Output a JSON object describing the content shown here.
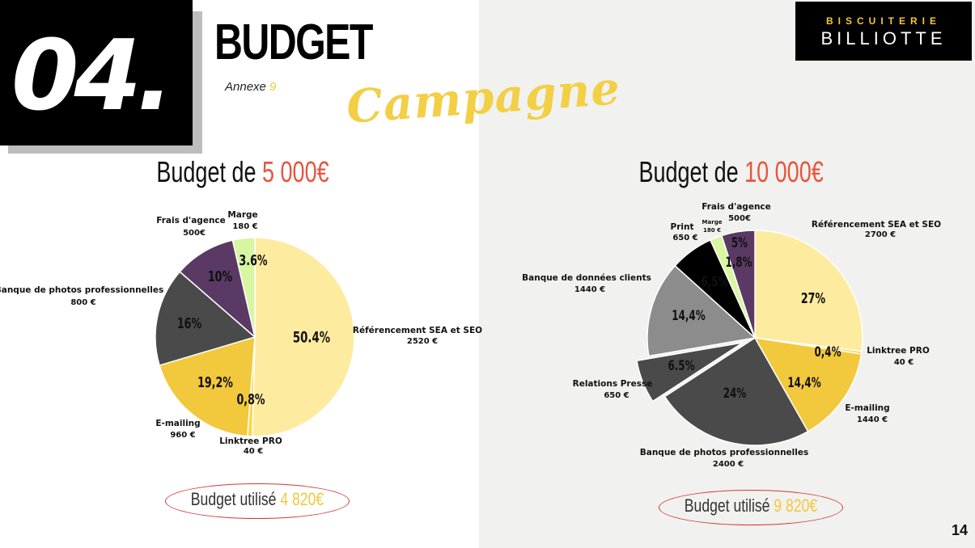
{
  "header": {
    "section_number": "04.",
    "title": "BUDGET",
    "annexe_label": "Annexe",
    "annexe_number": "9",
    "subtitle": "Campagne",
    "brand_line1": "BISCUITERIE",
    "brand_line2": "BILLIOTTE"
  },
  "left": {
    "heading_prefix": "Budget de",
    "heading_value": "5 000€",
    "used_prefix": "Budget utilisé",
    "used_value": "4 820€"
  },
  "right": {
    "heading_prefix": "Budget de",
    "heading_value": "10 000€",
    "used_prefix": "Budget utilisé",
    "used_value": "9 820€"
  },
  "page_number": "14",
  "colors": {
    "accent_yellow": "#f2c83c",
    "accent_red": "#e8543e",
    "light_yellow": "#fdeba0",
    "purple": "#5a3a64",
    "dark_gray": "#4a4a4a",
    "light_green": "#d8f5a2",
    "mid_gray": "#8c8c8c"
  },
  "chart_data": [
    {
      "type": "pie",
      "title": "Budget de 5 000€",
      "slices": [
        {
          "name": "Référencement SEA et SEO",
          "amount": "2520 €",
          "value": 2520,
          "pct_label": "50.4%",
          "color": "#fdeba0"
        },
        {
          "name": "Linktree PRO",
          "amount": "40 €",
          "value": 40,
          "pct_label": "0,8%",
          "color": "#f7d84a"
        },
        {
          "name": "E-mailing",
          "amount": "960 €",
          "value": 960,
          "pct_label": "19,2%",
          "color": "#f2c83c"
        },
        {
          "name": "Banque de photos professionnelles",
          "amount": "800 €",
          "value": 800,
          "pct_label": "16%",
          "color": "#4a4a4a"
        },
        {
          "name": "Frais d'agence",
          "amount": "500€",
          "value": 500,
          "pct_label": "10%",
          "color": "#5a3a64"
        },
        {
          "name": "Marge",
          "amount": "180 €",
          "value": 180,
          "pct_label": "3.6%",
          "color": "#d8f5a2"
        }
      ]
    },
    {
      "type": "pie",
      "title": "Budget de 10 000€",
      "slices": [
        {
          "name": "Référencement SEA et SEO",
          "amount": "2700 €",
          "value": 2700,
          "pct_label": "27%",
          "color": "#fdeba0"
        },
        {
          "name": "Linktree PRO",
          "amount": "40 €",
          "value": 40,
          "pct_label": "0,4%",
          "color": "#f7d84a"
        },
        {
          "name": "E-mailing",
          "amount": "1440 €",
          "value": 1440,
          "pct_label": "14,4%",
          "color": "#f2c83c"
        },
        {
          "name": "Banque de photos professionnelles",
          "amount": "2400 €",
          "value": 2400,
          "pct_label": "24%",
          "color": "#4a4a4a"
        },
        {
          "name": "Relations Presse",
          "amount": "650 €",
          "value": 650,
          "pct_label": "6.5%",
          "color": "#4a4a4a"
        },
        {
          "name": "Banque de données clients",
          "amount": "1440 €",
          "value": 1440,
          "pct_label": "14,4%",
          "color": "#8c8c8c"
        },
        {
          "name": "Print",
          "amount": "650 €",
          "value": 650,
          "pct_label": "6,5%",
          "color": "#000000"
        },
        {
          "name": "Marge",
          "amount": "180 €",
          "value": 180,
          "pct_label": "1,8%",
          "color": "#d8f5a2"
        },
        {
          "name": "Frais d'agence",
          "amount": "500€",
          "value": 500,
          "pct_label": "5%",
          "color": "#5a3a64"
        }
      ]
    }
  ]
}
